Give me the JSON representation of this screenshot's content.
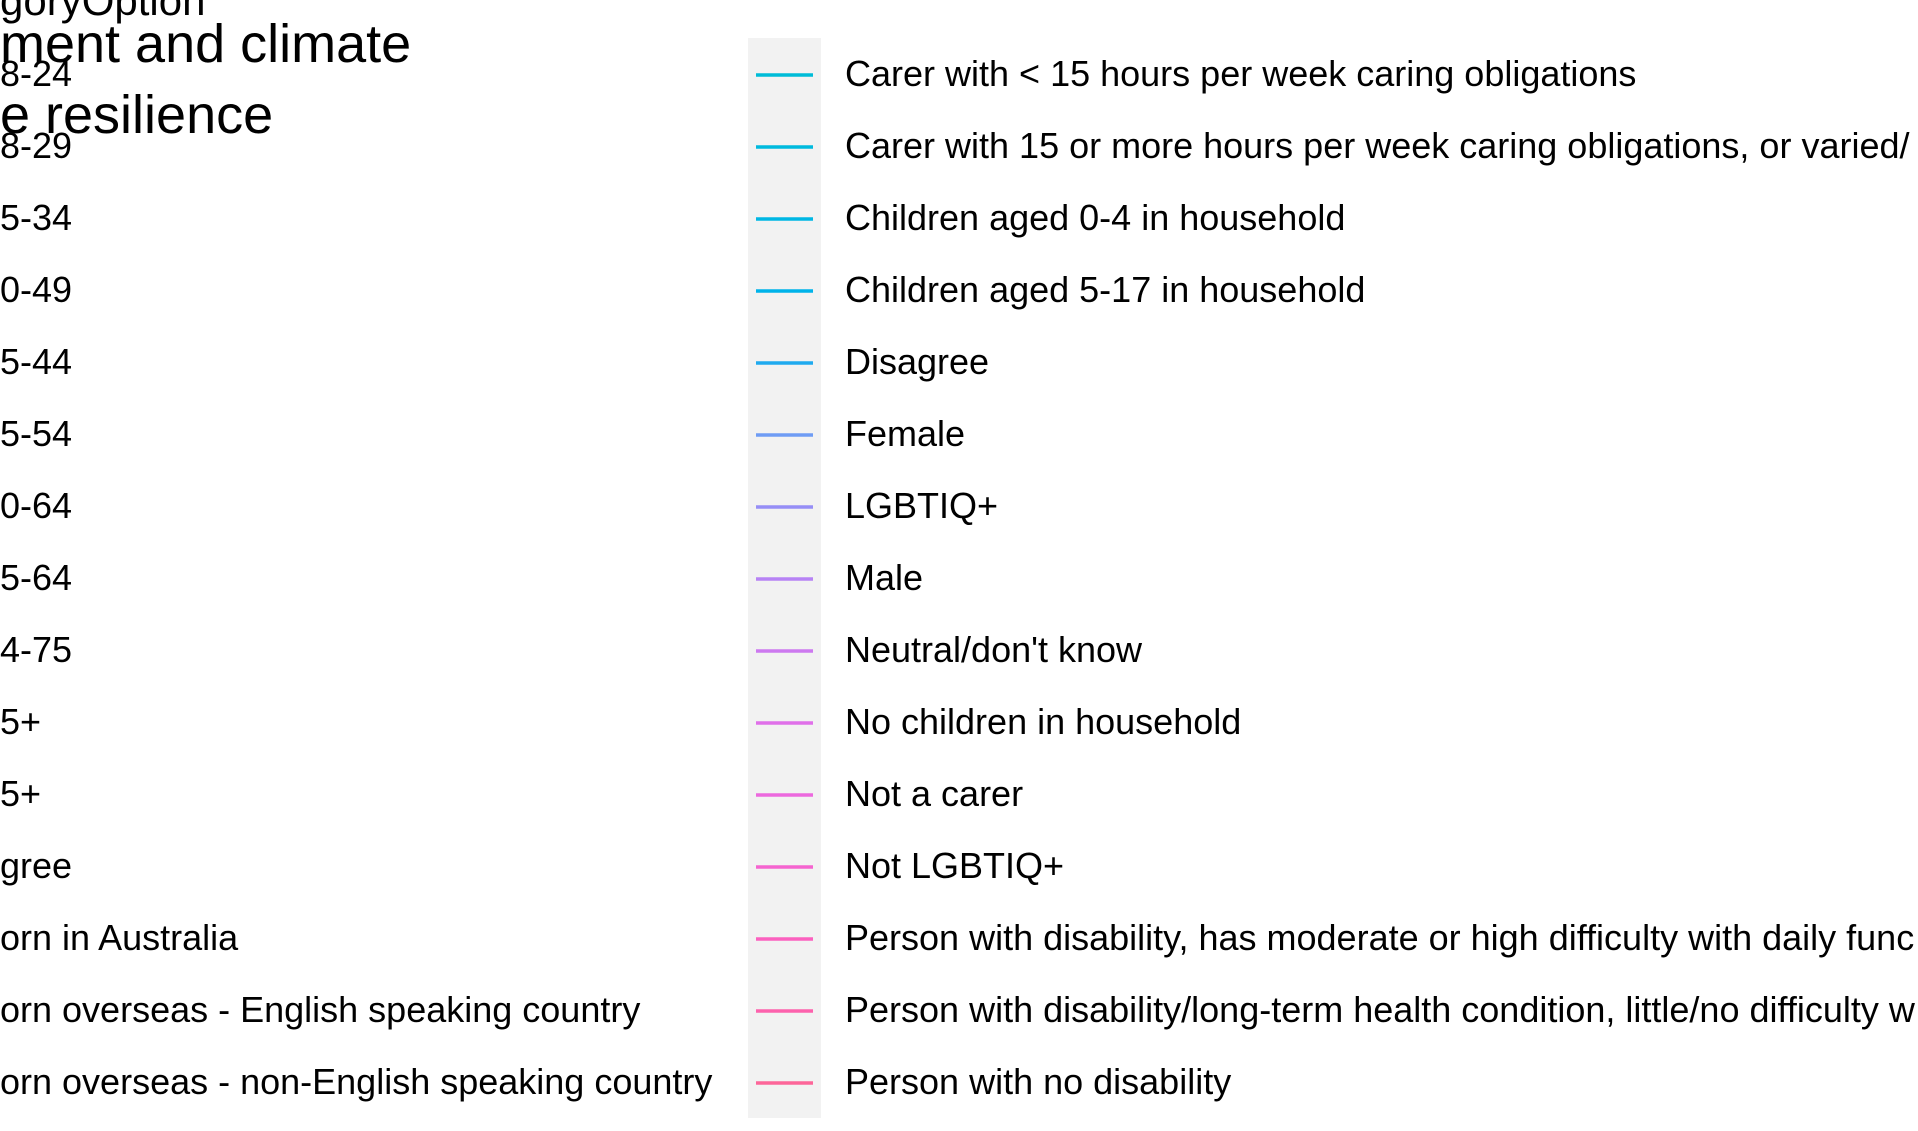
{
  "chart_data": {
    "type": "line",
    "title_fragments": [
      "ment and climate",
      "e resilience"
    ],
    "legend_title_fragment": "goryOption",
    "left_labels": [
      "8-24",
      "8-29",
      "5-34",
      "0-49",
      "5-44",
      "5-54",
      "0-64",
      "5-64",
      "4-75",
      "5+",
      "5+",
      "gree",
      "orn in Australia",
      "orn overseas - English speaking country",
      "orn overseas - non-English speaking country"
    ],
    "legend": {
      "placement": "right",
      "entries": [
        {
          "label": "Carer with < 15 hours per week caring obligations",
          "color": "#00BCD8"
        },
        {
          "label": "Carer with 15 or more hours per week caring obligations, or varied/",
          "color": "#00BADE"
        },
        {
          "label": "Children aged 0-4 in household",
          "color": "#00B7E4"
        },
        {
          "label": "Children aged 5-17 in household",
          "color": "#00B3EA"
        },
        {
          "label": "Disagree",
          "color": "#1FAAEF"
        },
        {
          "label": "Female",
          "color": "#6F9CF4"
        },
        {
          "label": "LGBTIQ+",
          "color": "#968EF6"
        },
        {
          "label": "Male",
          "color": "#B783F5"
        },
        {
          "label": "Neutral/don't know",
          "color": "#CD79F0"
        },
        {
          "label": "No children in household",
          "color": "#E070E9"
        },
        {
          "label": "Not a carer",
          "color": "#EC69DE"
        },
        {
          "label": "Not LGBTIQ+",
          "color": "#F564D0"
        },
        {
          "label": "Person with disability, has moderate or high difficulty with daily func",
          "color": "#FB61BF"
        },
        {
          "label": "Person with disability/long-term health condition, little/no difficulty w",
          "color": "#FD62AD"
        },
        {
          "label": "Person with no disability",
          "color": "#FD6699"
        }
      ]
    }
  }
}
